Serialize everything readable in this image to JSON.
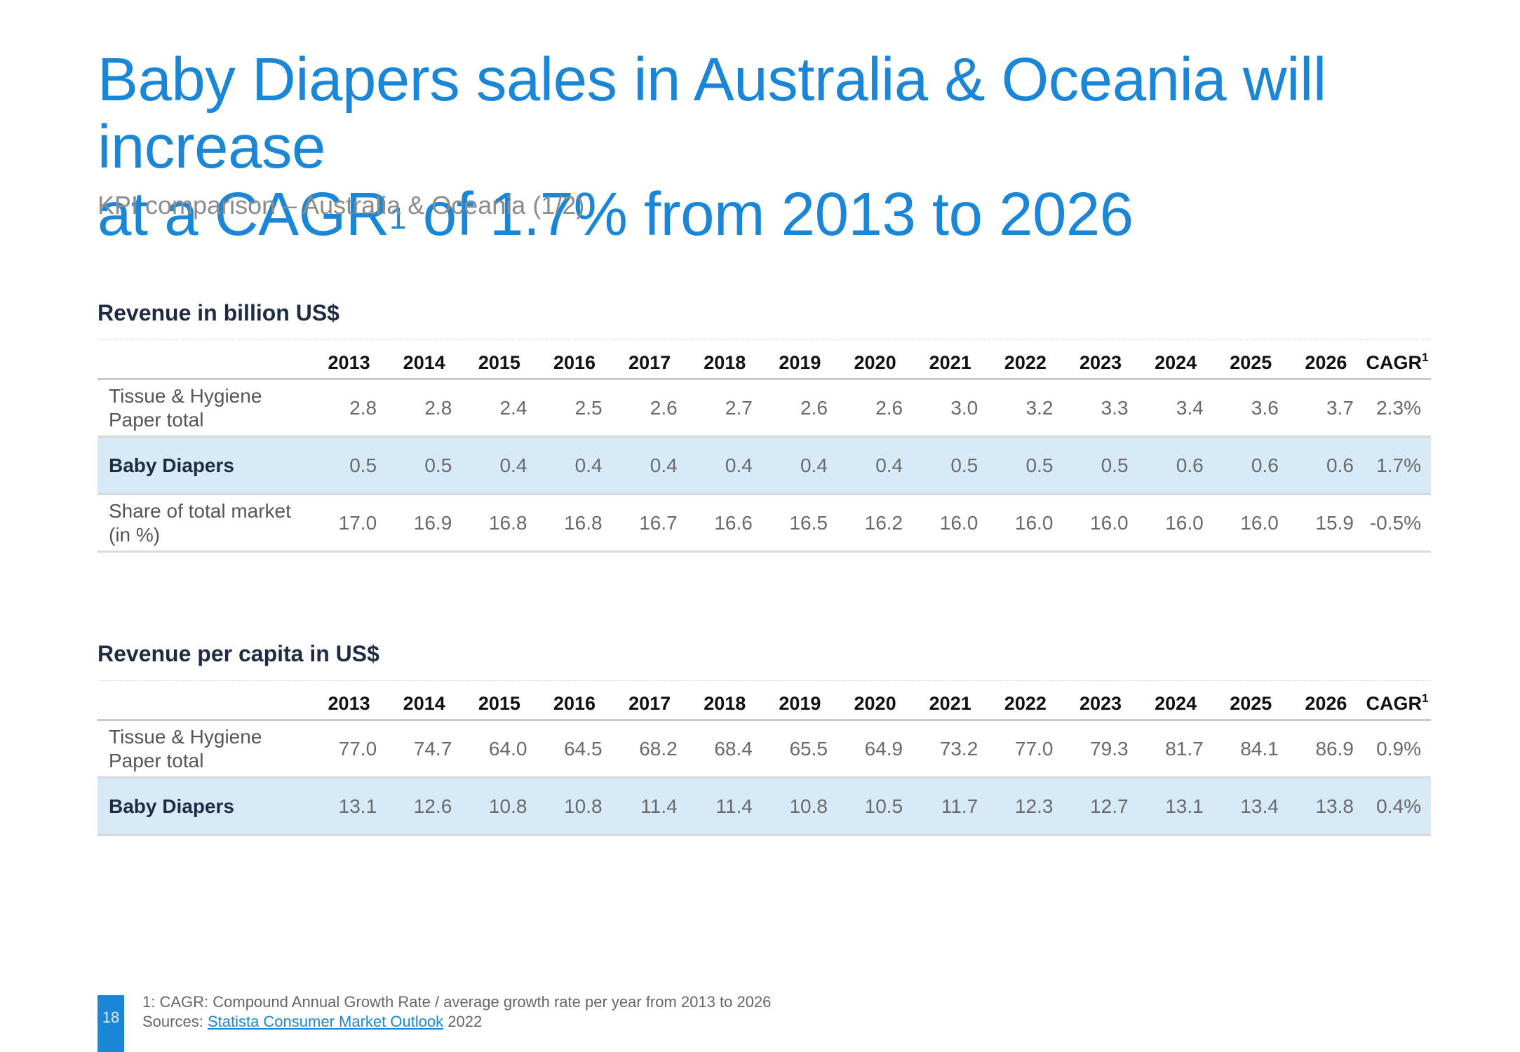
{
  "title": {
    "line1": "Baby Diapers sales in Australia & Oceania will increase",
    "line2_pre": "at a CAGR",
    "line2_sup": "1",
    "line2_post": " of 1.7% from 2013 to 2026"
  },
  "subtitle": "KPI comparison – Australia & Oceania (1/2)",
  "columns": [
    "2013",
    "2014",
    "2015",
    "2016",
    "2017",
    "2018",
    "2019",
    "2020",
    "2021",
    "2022",
    "2023",
    "2024",
    "2025",
    "2026"
  ],
  "cagr_label": "CAGR",
  "cagr_sup": "1",
  "revenue": {
    "title": "Revenue in billion US$",
    "rows": [
      {
        "line1": "Tissue & Hygiene",
        "line2": "Paper total",
        "values": [
          "2.8",
          "2.8",
          "2.4",
          "2.5",
          "2.6",
          "2.7",
          "2.6",
          "2.6",
          "3.0",
          "3.2",
          "3.3",
          "3.4",
          "3.6",
          "3.7",
          "2.3%"
        ]
      },
      {
        "line1": "Baby Diapers",
        "line2": "",
        "values": [
          "0.5",
          "0.5",
          "0.4",
          "0.4",
          "0.4",
          "0.4",
          "0.4",
          "0.4",
          "0.5",
          "0.5",
          "0.5",
          "0.6",
          "0.6",
          "0.6",
          "1.7%"
        ]
      },
      {
        "line1": "Share of total market",
        "line2": "(in %)",
        "values": [
          "17.0",
          "16.9",
          "16.8",
          "16.8",
          "16.7",
          "16.6",
          "16.5",
          "16.2",
          "16.0",
          "16.0",
          "16.0",
          "16.0",
          "16.0",
          "15.9",
          "-0.5%"
        ]
      }
    ]
  },
  "per_capita": {
    "title": "Revenue per capita in US$",
    "rows": [
      {
        "line1": "Tissue & Hygiene",
        "line2": "Paper total",
        "values": [
          "77.0",
          "74.7",
          "64.0",
          "64.5",
          "68.2",
          "68.4",
          "65.5",
          "64.9",
          "73.2",
          "77.0",
          "79.3",
          "81.7",
          "84.1",
          "86.9",
          "0.9%"
        ]
      },
      {
        "line1": "Baby Diapers",
        "line2": "",
        "values": [
          "13.1",
          "12.6",
          "10.8",
          "10.8",
          "11.4",
          "11.4",
          "10.8",
          "10.5",
          "11.7",
          "12.3",
          "12.7",
          "13.1",
          "13.4",
          "13.8",
          "0.4%"
        ]
      }
    ]
  },
  "footer": {
    "page_number": "18",
    "note": "1: CAGR: Compound Annual Growth Rate / average growth rate per year from 2013 to 2026",
    "sources_label": "Sources: ",
    "sources_link": "Statista Consumer Market Outlook",
    "sources_year": " 2022"
  },
  "colors": {
    "accent": "#1a86d8",
    "highlight_row": "#d6eaf8"
  }
}
